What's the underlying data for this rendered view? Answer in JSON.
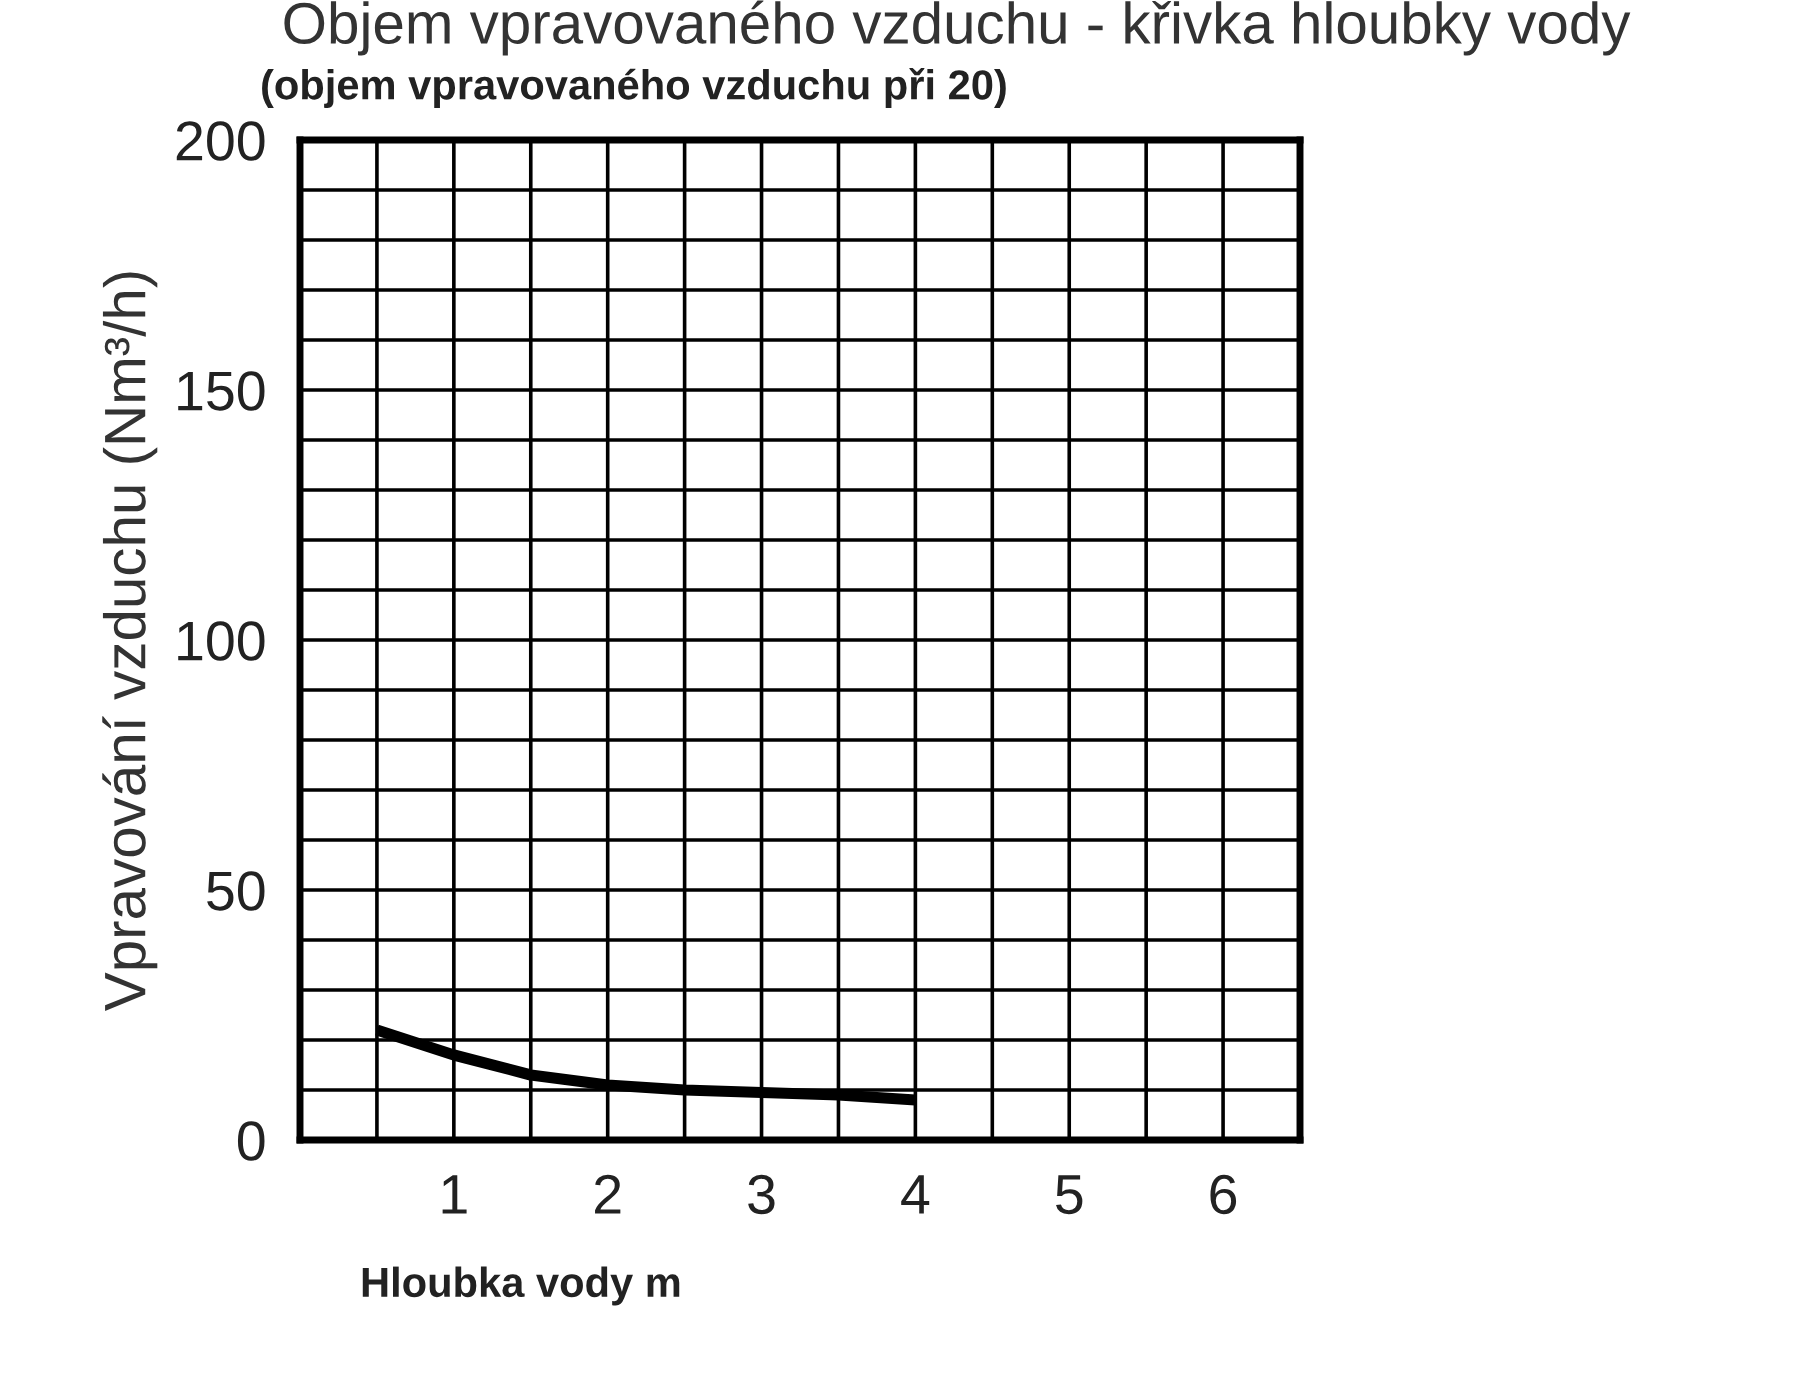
{
  "chart_data": {
    "type": "line",
    "title": "Objem vpravovaného vzduchu - křivka hloubky vody",
    "subtitle": "(objem vpravovaného vzduchu při 20)",
    "xlabel": "Hloubka vody m",
    "ylabel": "Vpravování vzduchu (Nm³/h)",
    "x": [
      0.5,
      1,
      1.5,
      2,
      2.5,
      3,
      3.5,
      4
    ],
    "series": [
      {
        "color": "#000000",
        "values": [
          22,
          17,
          13,
          11,
          10,
          9.5,
          9,
          8
        ]
      }
    ],
    "xlim": [
      0,
      6.5
    ],
    "ylim": [
      0,
      200
    ],
    "xticks": [
      {
        "value": 0.5,
        "label": null
      },
      1,
      {
        "value": 1.5,
        "label": null
      },
      2,
      {
        "value": 2.5,
        "label": null
      },
      3,
      {
        "value": 3.5,
        "label": null
      },
      4,
      {
        "value": 4.5,
        "label": null
      },
      5,
      {
        "value": 5.5,
        "label": null
      },
      6
    ],
    "yticks": [
      0,
      {
        "value": 10,
        "label": null
      },
      {
        "value": 20,
        "label": null
      },
      {
        "value": 30,
        "label": null
      },
      {
        "value": 40,
        "label": null
      },
      50,
      {
        "value": 60,
        "label": null
      },
      {
        "value": 70,
        "label": null
      },
      {
        "value": 80,
        "label": null
      },
      {
        "value": 90,
        "label": null
      },
      100,
      {
        "value": 110,
        "label": null
      },
      {
        "value": 120,
        "label": null
      },
      {
        "value": 130,
        "label": null
      },
      {
        "value": 140,
        "label": null
      },
      150,
      {
        "value": 160,
        "label": null
      },
      {
        "value": 170,
        "label": null
      },
      {
        "value": 180,
        "label": null
      },
      {
        "value": 190,
        "label": null
      },
      200
    ],
    "grid": true,
    "marker": "none",
    "line_style": "solid",
    "legend": false
  }
}
